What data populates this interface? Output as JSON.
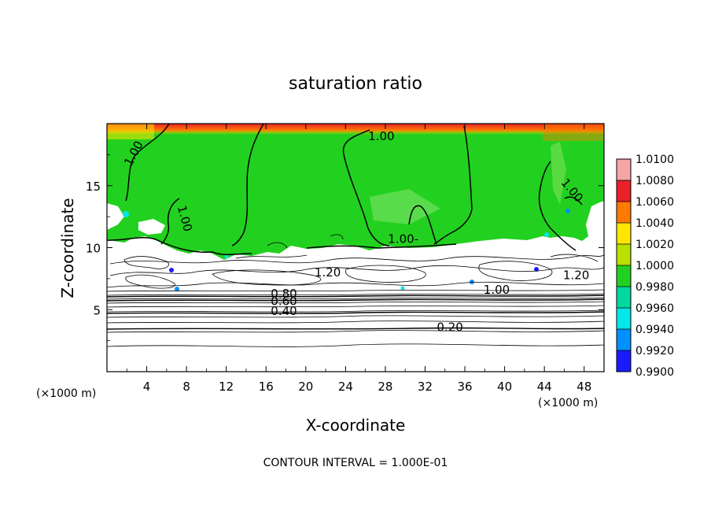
{
  "chart_data": {
    "type": "heatmap",
    "title": "saturation ratio",
    "xlabel": "X-coordinate",
    "ylabel": "Z-coordinate",
    "x_unit": "(×1000 m)",
    "z_unit": "(×1000 m)",
    "xlim": [
      0,
      50
    ],
    "ylim": [
      0,
      20
    ],
    "x_ticks": [
      4,
      8,
      12,
      16,
      20,
      24,
      28,
      32,
      36,
      40,
      44,
      48
    ],
    "y_ticks": [
      5,
      10,
      15
    ],
    "footer": "CONTOUR INTERVAL = 1.000E-01",
    "colorbar": {
      "levels": [
        "1.0100",
        "1.0080",
        "1.0060",
        "1.0040",
        "1.0020",
        "1.0000",
        "0.9980",
        "0.9960",
        "0.9940",
        "0.9920",
        "0.9900"
      ],
      "colors": [
        "#f4a6a6",
        "#e8202a",
        "#ff7a00",
        "#ffe600",
        "#b8e000",
        "#22d11f",
        "#00d8a0",
        "#00e8e8",
        "#0090ff",
        "#1a1aff",
        "#6a00b0"
      ]
    },
    "contour_labels": [
      {
        "text": "1.00",
        "x": 2.9,
        "z": 17.5,
        "rotate": -62
      },
      {
        "text": "1.00",
        "x": 27.6,
        "z": 18.8,
        "rotate": 0
      },
      {
        "text": "1.00",
        "x": 7.6,
        "z": 12.3,
        "rotate": 75
      },
      {
        "text": "1.00",
        "x": 46.6,
        "z": 14.5,
        "rotate": 50
      },
      {
        "text": "1.00-",
        "x": 29.8,
        "z": 10.5,
        "rotate": 0
      },
      {
        "text": "1.20",
        "x": 22.2,
        "z": 7.8,
        "rotate": 0
      },
      {
        "text": "1.20",
        "x": 47.2,
        "z": 7.6,
        "rotate": 0
      },
      {
        "text": "1.00",
        "x": 39.2,
        "z": 6.4,
        "rotate": 0
      },
      {
        "text": "0.80",
        "x": 17.8,
        "z": 6.1,
        "rotate": 0
      },
      {
        "text": "0.60",
        "x": 17.8,
        "z": 5.5,
        "rotate": 0
      },
      {
        "text": "0.40",
        "x": 17.8,
        "z": 4.7,
        "rotate": 0
      },
      {
        "text": "0.20",
        "x": 34.5,
        "z": 3.4,
        "rotate": 0
      }
    ]
  }
}
